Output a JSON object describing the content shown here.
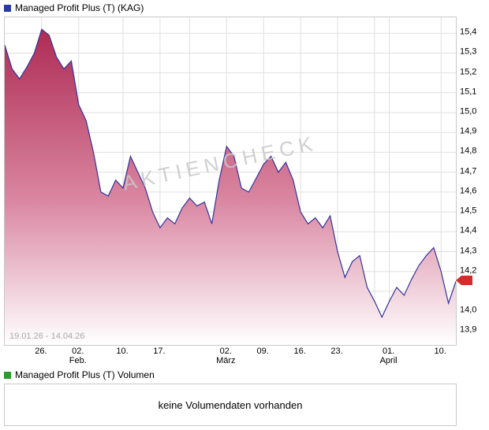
{
  "header": {
    "title": "Managed Profit Plus (T) (KAG)",
    "swatch_color": "#2b3aa0"
  },
  "chart_data": {
    "type": "area",
    "title": "Managed Profit Plus (T) (KAG)",
    "xlabel": "",
    "ylabel": "",
    "range_label": "19.01.26 - 14.04.26",
    "watermark": "Aktiencheck",
    "ylim": [
      13.83,
      15.48
    ],
    "values": [
      15.34,
      15.22,
      15.17,
      15.23,
      15.3,
      15.42,
      15.39,
      15.28,
      15.22,
      15.26,
      15.04,
      14.96,
      14.8,
      14.6,
      14.58,
      14.66,
      14.62,
      14.78,
      14.7,
      14.62,
      14.5,
      14.42,
      14.47,
      14.44,
      14.52,
      14.57,
      14.53,
      14.55,
      14.44,
      14.66,
      14.83,
      14.78,
      14.62,
      14.6,
      14.67,
      14.74,
      14.78,
      14.7,
      14.75,
      14.66,
      14.5,
      14.44,
      14.47,
      14.42,
      14.48,
      14.3,
      14.17,
      14.25,
      14.28,
      14.12,
      14.05,
      13.97,
      14.05,
      14.12,
      14.08,
      14.16,
      14.23,
      14.28,
      14.32,
      14.2,
      14.04,
      14.15
    ],
    "last_value": 14.15,
    "x_ticks": [
      {
        "i": 5,
        "label": "26."
      },
      {
        "i": 10,
        "label": "02.",
        "sub": "Feb."
      },
      {
        "i": 16,
        "label": "10."
      },
      {
        "i": 21,
        "label": "17."
      },
      {
        "i": 25,
        "label": ""
      },
      {
        "i": 30,
        "label": "02.",
        "sub": "März"
      },
      {
        "i": 35,
        "label": "09."
      },
      {
        "i": 40,
        "label": "16."
      },
      {
        "i": 45,
        "label": "23."
      },
      {
        "i": 50,
        "label": ""
      },
      {
        "i": 52,
        "label": "01.",
        "sub": "April"
      },
      {
        "i": 59,
        "label": "10."
      }
    ],
    "y_ticks": [
      {
        "v": 15.4,
        "label": "15,4"
      },
      {
        "v": 15.3,
        "label": "15,3"
      },
      {
        "v": 15.2,
        "label": "15,2"
      },
      {
        "v": 15.1,
        "label": "15,1"
      },
      {
        "v": 15.0,
        "label": "15,0"
      },
      {
        "v": 14.9,
        "label": "14,9"
      },
      {
        "v": 14.8,
        "label": "14,8"
      },
      {
        "v": 14.7,
        "label": "14,7"
      },
      {
        "v": 14.6,
        "label": "14,6"
      },
      {
        "v": 14.5,
        "label": "14,5"
      },
      {
        "v": 14.4,
        "label": "14,4"
      },
      {
        "v": 14.3,
        "label": "14,3"
      },
      {
        "v": 14.2,
        "label": "14,2"
      },
      {
        "v": 14.1,
        "label": ""
      },
      {
        "v": 14.0,
        "label": "14,0"
      },
      {
        "v": 13.9,
        "label": "13,9"
      }
    ],
    "line_color": "#333399",
    "grid_color": "#dfdfdf",
    "marker_color": "#d42b2b",
    "fill_stops": [
      {
        "offset": "0%",
        "color": "#ae2b54"
      },
      {
        "offset": "55%",
        "color": "#da88a3"
      },
      {
        "offset": "100%",
        "color": "#ffffff"
      }
    ],
    "legend_position": "top-left",
    "grid": "on"
  },
  "volume": {
    "title": "Managed Profit Plus (T) Volumen",
    "message": "keine Volumendaten vorhanden",
    "swatch_color": "#2f992f"
  }
}
